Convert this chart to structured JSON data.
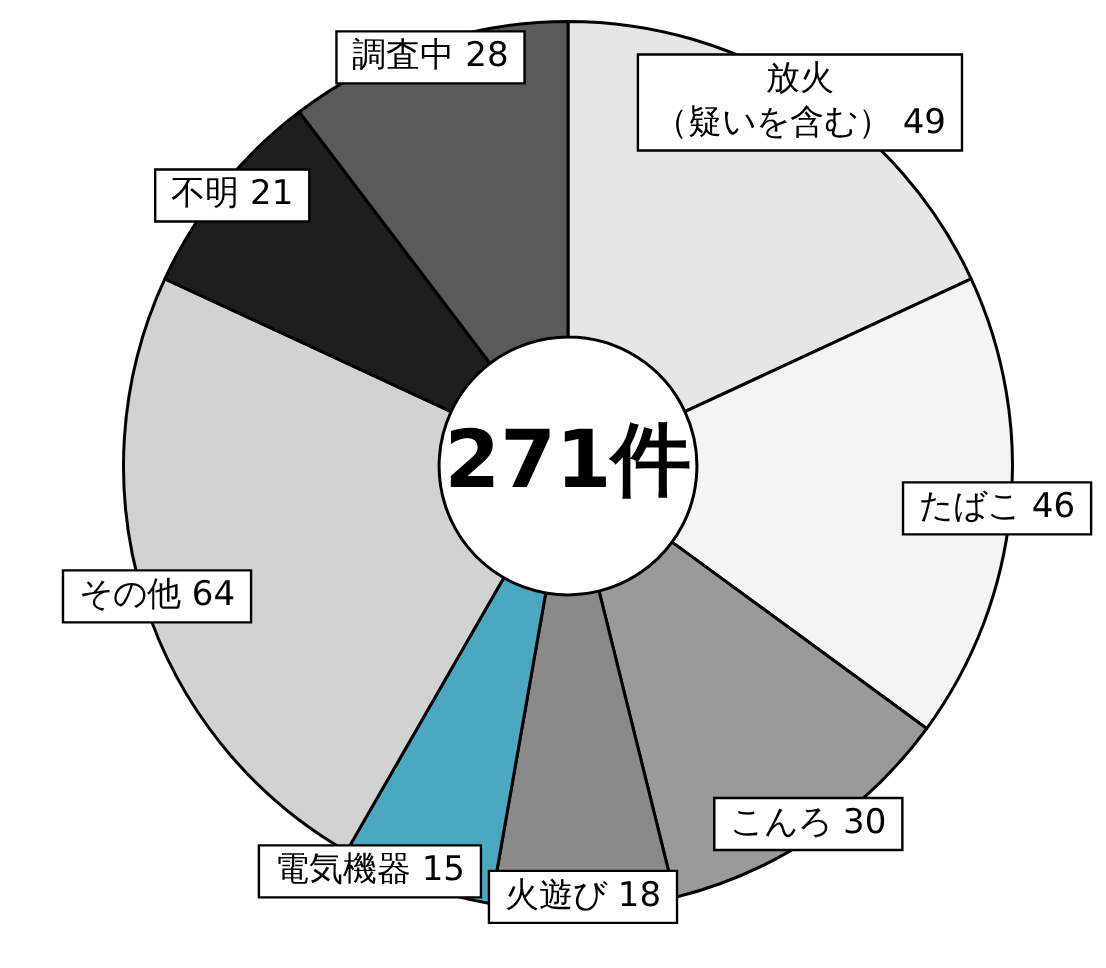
{
  "chart_data": {
    "type": "donut",
    "categories": [
      "放火（疑いを含む）",
      "たばこ",
      "こんろ",
      "火遊び",
      "電気機器",
      "その他",
      "不明",
      "調査中"
    ],
    "values": [
      49,
      46,
      30,
      18,
      15,
      64,
      21,
      28
    ],
    "colors": [
      "#e6e6e6",
      "#f4f4f4",
      "#9a9a9a",
      "#8a8a8a",
      "#4aa8c0",
      "#d2d2d2",
      "#1e1e1e",
      "#5a5a5a"
    ],
    "data_labels": true,
    "annotations": [
      "271件"
    ]
  }
}
